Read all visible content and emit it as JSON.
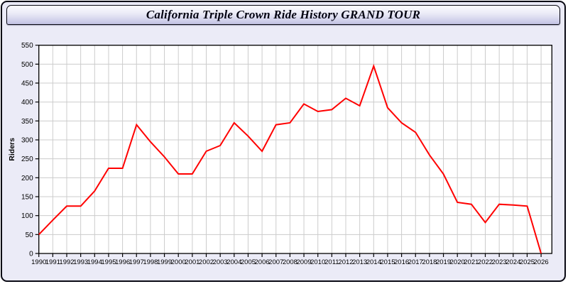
{
  "window": {
    "title": "California Triple Crown Ride History GRAND TOUR",
    "bg_color": "#ebebf7",
    "titlebar_gradient_top": "#fdfdff",
    "titlebar_gradient_bottom": "#c3c3e4"
  },
  "chart_data": {
    "type": "line",
    "title": "California Triple Crown Ride History GRAND TOUR",
    "xlabel": "",
    "ylabel": "Riders",
    "x": [
      1990,
      1991,
      1992,
      1993,
      1994,
      1995,
      1996,
      1997,
      1998,
      1999,
      2000,
      2001,
      2002,
      2003,
      2004,
      2005,
      2006,
      2007,
      2008,
      2009,
      2010,
      2011,
      2012,
      2013,
      2014,
      2015,
      2016,
      2017,
      2018,
      2019,
      2020,
      2021,
      2022,
      2023,
      2024,
      2025,
      2026
    ],
    "series": [
      {
        "name": "Riders",
        "color": "#ff0000",
        "values": [
          50,
          88,
          125,
          125,
          165,
          225,
          225,
          340,
          295,
          255,
          210,
          210,
          270,
          285,
          345,
          310,
          270,
          340,
          345,
          395,
          375,
          380,
          410,
          390,
          495,
          385,
          345,
          320,
          260,
          210,
          135,
          130,
          82,
          130,
          128,
          125,
          0
        ]
      }
    ],
    "ylim": [
      0,
      550
    ],
    "yticks": [
      0,
      50,
      100,
      150,
      200,
      250,
      300,
      350,
      400,
      450,
      500,
      550
    ],
    "grid": true,
    "legend_position": "none",
    "grid_color": "#cccccc",
    "axis_color": "#000000",
    "tick_label_color": "#000000",
    "plot_bg": "#ffffff",
    "line_width": 2
  }
}
